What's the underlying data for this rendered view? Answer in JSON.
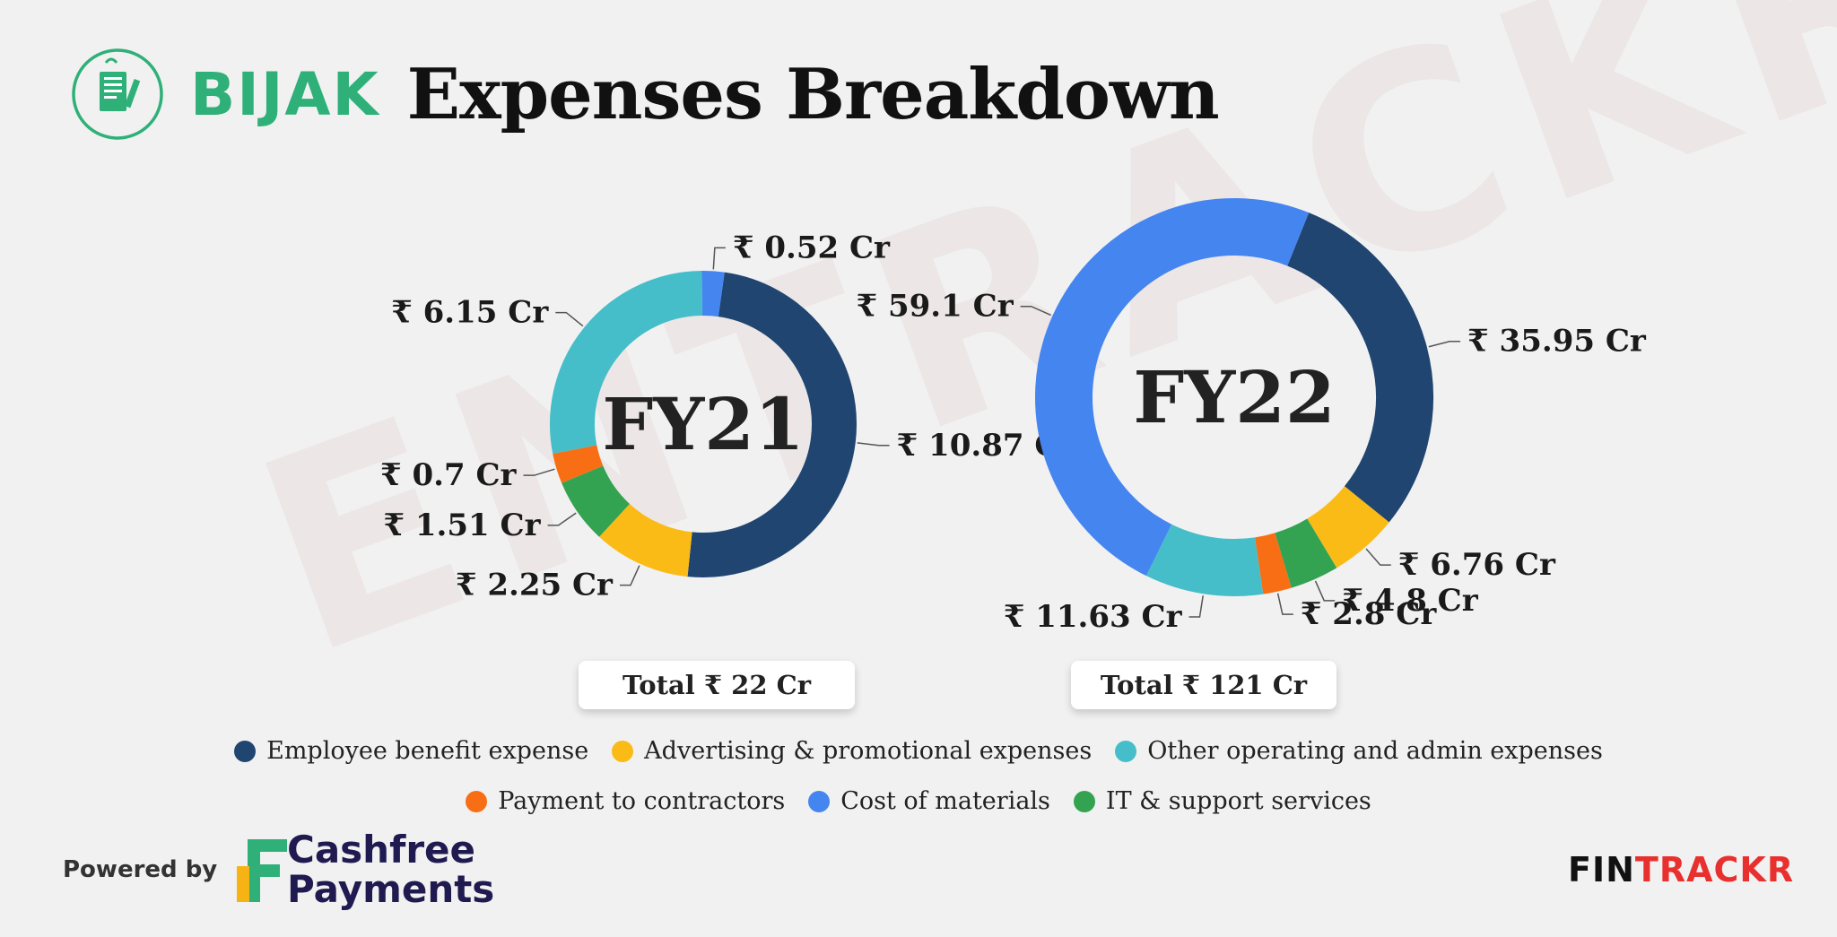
{
  "header": {
    "brand": "BIJAK",
    "title": "Expenses Breakdown"
  },
  "watermark": "ENTRACKR",
  "colors": {
    "employee": "#1f4570",
    "advertising": "#fbbb16",
    "other_operating": "#45bec9",
    "contractors": "#f86e14",
    "materials": "#4585f0",
    "it_support": "#33a351",
    "brand_green": "#2fb079",
    "fintrackr_red": "#e8302e"
  },
  "chart_data": [
    {
      "type": "pie",
      "center_label": "FY21",
      "total_label": "Total ₹ 22 Cr",
      "series": [
        {
          "name": "Employee benefit expense",
          "value": 10.87,
          "label": "₹ 10.87 Cr",
          "color_key": "employee"
        },
        {
          "name": "Advertising & promotional expenses",
          "value": 2.25,
          "label": "₹ 2.25 Cr",
          "color_key": "advertising"
        },
        {
          "name": "IT & support services",
          "value": 1.51,
          "label": "₹ 1.51 Cr",
          "color_key": "it_support"
        },
        {
          "name": "Payment to contractors",
          "value": 0.7,
          "label": "₹ 0.7 Cr",
          "color_key": "contractors"
        },
        {
          "name": "Other operating and admin expenses",
          "value": 6.15,
          "label": "₹ 6.15 Cr",
          "color_key": "other_operating"
        },
        {
          "name": "Cost of materials",
          "value": 0.52,
          "label": "₹ 0.52 Cr",
          "color_key": "materials"
        }
      ]
    },
    {
      "type": "pie",
      "center_label": "FY22",
      "total_label": "Total ₹ 121 Cr",
      "series": [
        {
          "name": "Employee benefit expense",
          "value": 35.95,
          "label": "₹ 35.95 Cr",
          "color_key": "employee"
        },
        {
          "name": "Advertising & promotional expenses",
          "value": 6.76,
          "label": "₹ 6.76 Cr",
          "color_key": "advertising"
        },
        {
          "name": "IT & support services",
          "value": 4.8,
          "label": "₹ 4.8 Cr",
          "color_key": "it_support"
        },
        {
          "name": "Payment to contractors",
          "value": 2.8,
          "label": "₹ 2.8 Cr",
          "color_key": "contractors"
        },
        {
          "name": "Other operating and admin expenses",
          "value": 11.63,
          "label": "₹ 11.63 Cr",
          "color_key": "other_operating"
        },
        {
          "name": "Cost of materials",
          "value": 59.1,
          "label": "₹ 59.1 Cr",
          "color_key": "materials"
        }
      ]
    }
  ],
  "legend": {
    "row1": [
      {
        "label": "Employee benefit expense",
        "color_key": "employee"
      },
      {
        "label": "Advertising & promotional expenses",
        "color_key": "advertising"
      },
      {
        "label": "Other operating and admin expenses",
        "color_key": "other_operating"
      }
    ],
    "row2": [
      {
        "label": "Payment to contractors",
        "color_key": "contractors"
      },
      {
        "label": "Cost of materials",
        "color_key": "materials"
      },
      {
        "label": "IT & support services",
        "color_key": "it_support"
      }
    ]
  },
  "footer": {
    "powered_by": "Powered by",
    "sponsor_line1": "Cashfree",
    "sponsor_line2": "Payments",
    "fintrackr_part1": "FIN",
    "fintrackr_part2": "TRACKR"
  }
}
